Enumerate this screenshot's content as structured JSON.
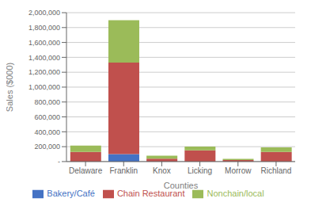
{
  "chart_data": {
    "type": "bar",
    "stacked": true,
    "categories": [
      "Delaware",
      "Franklin",
      "Knox",
      "Licking",
      "Morrow",
      "Richland"
    ],
    "series": [
      {
        "name": "Bakery/Café",
        "color": "#4472C4",
        "values": [
          0,
          100000,
          0,
          0,
          0,
          0
        ]
      },
      {
        "name": "Chain Restaurant",
        "color": "#C0504D",
        "values": [
          130000,
          1230000,
          40000,
          150000,
          20000,
          130000
        ]
      },
      {
        "name": "Nonchain/local",
        "color": "#9BBB59",
        "values": [
          85000,
          570000,
          40000,
          50000,
          15000,
          60000
        ]
      }
    ],
    "xlabel": "Counties",
    "ylabel": "Sales ($000)",
    "ylim": [
      0,
      2000000
    ],
    "yticks": [
      {
        "value": 0,
        "label": "-"
      },
      {
        "value": 200000,
        "label": "200,000"
      },
      {
        "value": 400000,
        "label": "400,000"
      },
      {
        "value": 600000,
        "label": "600,000"
      },
      {
        "value": 800000,
        "label": "800,000"
      },
      {
        "value": 1000000,
        "label": "1,000,000"
      },
      {
        "value": 1200000,
        "label": "1,200,000"
      },
      {
        "value": 1400000,
        "label": "1,400,000"
      },
      {
        "value": 1600000,
        "label": "1,600,000"
      },
      {
        "value": 1800000,
        "label": "1,800,000"
      },
      {
        "value": 2000000,
        "label": "2,000,000"
      }
    ],
    "grid": true,
    "legend": "bottom"
  }
}
